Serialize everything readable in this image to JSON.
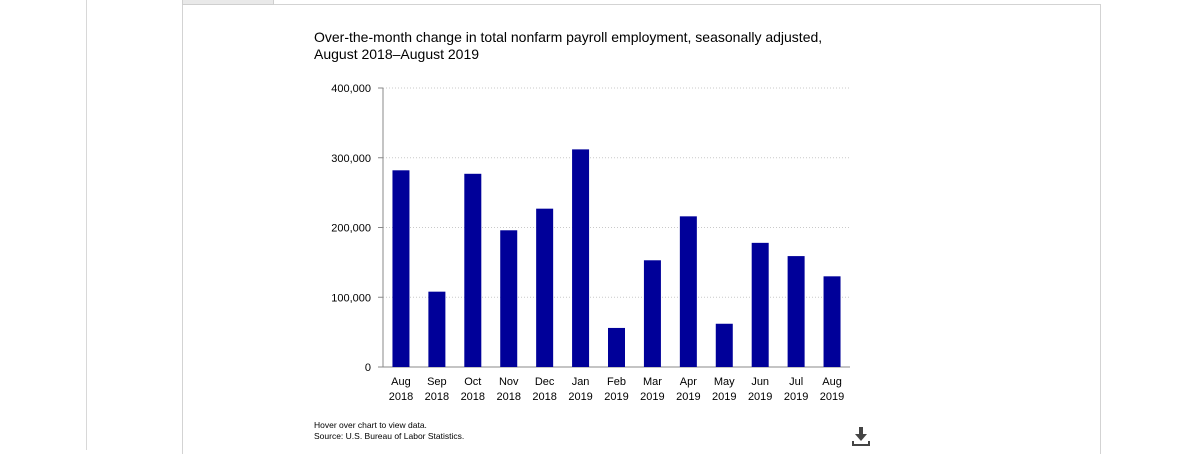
{
  "chart_title_line1": "Over-the-month change in total nonfarm payroll employment, seasonally adjusted,",
  "chart_title_line2": "August 2018–August 2019",
  "footnote_hover": "Hover over chart to view data.",
  "footnote_source": "Source: U.S. Bureau of Labor Statistics.",
  "download_icon": "download-icon",
  "colors": {
    "bar": "#000099",
    "gridline": "#c9c9c9",
    "axis": "#888888",
    "text": "#000000"
  },
  "chart_data": {
    "type": "bar",
    "title": "Over-the-month change in total nonfarm payroll employment, seasonally adjusted, August 2018–August 2019",
    "categories": [
      "Aug 2018",
      "Sep 2018",
      "Oct 2018",
      "Nov 2018",
      "Dec 2018",
      "Jan 2019",
      "Feb 2019",
      "Mar 2019",
      "Apr 2019",
      "May 2019",
      "Jun 2019",
      "Jul 2019",
      "Aug 2019"
    ],
    "category_labels": [
      [
        "Aug",
        "2018"
      ],
      [
        "Sep",
        "2018"
      ],
      [
        "Oct",
        "2018"
      ],
      [
        "Nov",
        "2018"
      ],
      [
        "Dec",
        "2018"
      ],
      [
        "Jan",
        "2019"
      ],
      [
        "Feb",
        "2019"
      ],
      [
        "Mar",
        "2019"
      ],
      [
        "Apr",
        "2019"
      ],
      [
        "May",
        "2019"
      ],
      [
        "Jun",
        "2019"
      ],
      [
        "Jul",
        "2019"
      ],
      [
        "Aug",
        "2019"
      ]
    ],
    "values": [
      282000,
      108000,
      277000,
      196000,
      227000,
      312000,
      56000,
      153000,
      216000,
      62000,
      178000,
      159000,
      130000
    ],
    "ylim": [
      0,
      400000
    ],
    "yticks": [
      0,
      100000,
      200000,
      300000,
      400000
    ],
    "ytick_labels": [
      "0",
      "100,000",
      "200,000",
      "300,000",
      "400,000"
    ],
    "grid": true,
    "xlabel": "",
    "ylabel": ""
  }
}
